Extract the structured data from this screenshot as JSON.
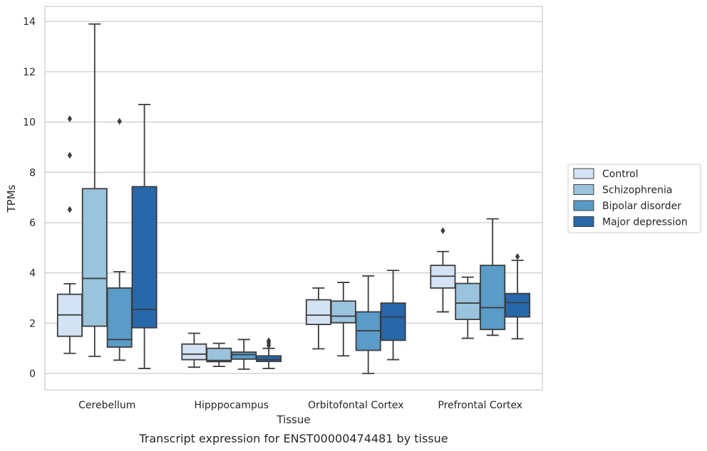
{
  "chart_data": {
    "type": "boxplot",
    "xlabel": "Tissue",
    "ylabel": "TPMs",
    "caption": "Transcript expression for ENST00000474481 by tissue",
    "ylim": [
      -0.65,
      14.6
    ],
    "yticks": [
      0,
      2,
      4,
      6,
      8,
      10,
      12,
      14
    ],
    "grid": "horizontal",
    "legend_position": "right",
    "categories": [
      "Cerebellum",
      "Hipppocampus",
      "Orbitofontal Cortex",
      "Prefrontal Cortex"
    ],
    "series": [
      {
        "name": "Control",
        "color": "#d4e3f3",
        "boxes": [
          {
            "whisker_low": 0.8,
            "q1": 1.48,
            "median": 2.33,
            "q3": 3.15,
            "whisker_high": 3.57,
            "outliers": [
              6.52,
              8.68,
              10.13
            ]
          },
          {
            "whisker_low": 0.25,
            "q1": 0.55,
            "median": 0.77,
            "q3": 1.17,
            "whisker_high": 1.6,
            "outliers": []
          },
          {
            "whisker_low": 0.98,
            "q1": 1.95,
            "median": 2.32,
            "q3": 2.93,
            "whisker_high": 3.4,
            "outliers": []
          },
          {
            "whisker_low": 2.45,
            "q1": 3.4,
            "median": 3.87,
            "q3": 4.3,
            "whisker_high": 4.85,
            "outliers": [
              5.68
            ]
          }
        ]
      },
      {
        "name": "Schizophrenia",
        "color": "#9ac3de",
        "boxes": [
          {
            "whisker_low": 0.68,
            "q1": 1.88,
            "median": 3.78,
            "q3": 7.35,
            "whisker_high": 13.9,
            "outliers": []
          },
          {
            "whisker_low": 0.28,
            "q1": 0.47,
            "median": 0.52,
            "q3": 1.0,
            "whisker_high": 1.2,
            "outliers": []
          },
          {
            "whisker_low": 0.7,
            "q1": 2.02,
            "median": 2.28,
            "q3": 2.88,
            "whisker_high": 3.62,
            "outliers": []
          },
          {
            "whisker_low": 1.4,
            "q1": 2.15,
            "median": 2.8,
            "q3": 3.58,
            "whisker_high": 3.83,
            "outliers": []
          }
        ]
      },
      {
        "name": "Bipolar disorder",
        "color": "#5a9bc7",
        "boxes": [
          {
            "whisker_low": 0.53,
            "q1": 1.05,
            "median": 1.35,
            "q3": 3.4,
            "whisker_high": 4.05,
            "outliers": [
              10.03
            ]
          },
          {
            "whisker_low": 0.17,
            "q1": 0.57,
            "median": 0.75,
            "q3": 0.85,
            "whisker_high": 1.35,
            "outliers": []
          },
          {
            "whisker_low": 0.0,
            "q1": 0.92,
            "median": 1.7,
            "q3": 2.45,
            "whisker_high": 3.88,
            "outliers": []
          },
          {
            "whisker_low": 1.52,
            "q1": 1.75,
            "median": 2.62,
            "q3": 4.3,
            "whisker_high": 6.15,
            "outliers": []
          }
        ]
      },
      {
        "name": "Major depression",
        "color": "#2767aa",
        "boxes": [
          {
            "whisker_low": 0.2,
            "q1": 1.82,
            "median": 2.55,
            "q3": 7.43,
            "whisker_high": 10.7,
            "outliers": []
          },
          {
            "whisker_low": 0.2,
            "q1": 0.48,
            "median": 0.55,
            "q3": 0.7,
            "whisker_high": 1.0,
            "outliers": [
              1.12,
              1.22,
              1.3
            ]
          },
          {
            "whisker_low": 0.55,
            "q1": 1.32,
            "median": 2.25,
            "q3": 2.8,
            "whisker_high": 4.1,
            "outliers": []
          },
          {
            "whisker_low": 1.38,
            "q1": 2.25,
            "median": 2.82,
            "q3": 3.18,
            "whisker_high": 4.5,
            "outliers": [
              4.65
            ]
          }
        ]
      }
    ]
  }
}
